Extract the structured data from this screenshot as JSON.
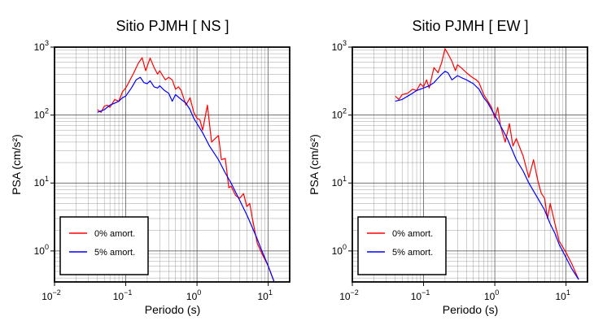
{
  "chart_data": [
    {
      "type": "line",
      "title": "Sitio PJMH [ NS ]",
      "xlabel": "Periodo (s)",
      "ylabel": "PSA (cm/s²)",
      "xscale": "log",
      "yscale": "log",
      "xlim": [
        0.01,
        20
      ],
      "ylim": [
        0.35,
        1000
      ],
      "grid": true,
      "legend_position": "bottom-left",
      "xticks": [
        {
          "value": 0.01,
          "base": "10",
          "exp": "−2"
        },
        {
          "value": 0.1,
          "base": "10",
          "exp": "−1"
        },
        {
          "value": 1,
          "base": "10",
          "exp": "0"
        },
        {
          "value": 10,
          "base": "10",
          "exp": "1"
        }
      ],
      "yticks": [
        {
          "value": 1,
          "base": "10",
          "exp": "0"
        },
        {
          "value": 10,
          "base": "10",
          "exp": "1"
        },
        {
          "value": 100,
          "base": "10",
          "exp": "2"
        },
        {
          "value": 1000,
          "base": "10",
          "exp": "3"
        }
      ],
      "series": [
        {
          "name": "0% amort.",
          "color": "#ff0000",
          "x": [
            0.04,
            0.045,
            0.05,
            0.055,
            0.06,
            0.07,
            0.08,
            0.09,
            0.1,
            0.11,
            0.12,
            0.13,
            0.15,
            0.17,
            0.19,
            0.2,
            0.22,
            0.25,
            0.28,
            0.3,
            0.33,
            0.36,
            0.4,
            0.45,
            0.5,
            0.55,
            0.6,
            0.7,
            0.8,
            0.9,
            1.0,
            1.1,
            1.2,
            1.4,
            1.6,
            1.8,
            2.0,
            2.2,
            2.5,
            2.8,
            3.0,
            3.5,
            4.0,
            4.5,
            5.0,
            5.5,
            6.0,
            7.0,
            8.0,
            10.0,
            12.0
          ],
          "y": [
            120,
            110,
            135,
            140,
            130,
            170,
            160,
            220,
            250,
            300,
            360,
            420,
            580,
            700,
            450,
            520,
            690,
            500,
            400,
            450,
            380,
            330,
            360,
            330,
            240,
            260,
            230,
            140,
            180,
            110,
            90,
            85,
            60,
            140,
            40,
            45,
            50,
            22,
            23,
            8.5,
            9,
            6.5,
            6,
            7,
            4.5,
            5,
            3,
            1.3,
            0.95,
            0.6,
            0.36
          ]
        },
        {
          "name": "5% amort.",
          "color": "#0000ff",
          "x": [
            0.04,
            0.05,
            0.06,
            0.07,
            0.08,
            0.09,
            0.1,
            0.12,
            0.14,
            0.16,
            0.18,
            0.2,
            0.22,
            0.25,
            0.28,
            0.3,
            0.35,
            0.4,
            0.45,
            0.5,
            0.6,
            0.7,
            0.8,
            0.9,
            1.0,
            1.2,
            1.5,
            2.0,
            2.5,
            3.0,
            4.0,
            5.0,
            6.0,
            7.0,
            8.0,
            10.0,
            12.0
          ],
          "y": [
            110,
            120,
            140,
            150,
            160,
            180,
            190,
            250,
            330,
            360,
            300,
            290,
            320,
            260,
            250,
            270,
            230,
            210,
            160,
            200,
            170,
            150,
            120,
            90,
            75,
            55,
            35,
            22,
            14,
            10,
            5.5,
            3.4,
            2.2,
            1.5,
            1.05,
            0.6,
            0.36
          ]
        }
      ]
    },
    {
      "type": "line",
      "title": "Sitio PJMH [ EW ]",
      "xlabel": "Periodo (s)",
      "ylabel": "PSA (cm/s²)",
      "xscale": "log",
      "yscale": "log",
      "xlim": [
        0.01,
        20
      ],
      "ylim": [
        0.35,
        1000
      ],
      "grid": true,
      "legend_position": "bottom-left",
      "xticks": [
        {
          "value": 0.01,
          "base": "10",
          "exp": "−2"
        },
        {
          "value": 0.1,
          "base": "10",
          "exp": "−1"
        },
        {
          "value": 1,
          "base": "10",
          "exp": "0"
        },
        {
          "value": 10,
          "base": "10",
          "exp": "1"
        }
      ],
      "yticks": [
        {
          "value": 1,
          "base": "10",
          "exp": "0"
        },
        {
          "value": 10,
          "base": "10",
          "exp": "1"
        },
        {
          "value": 100,
          "base": "10",
          "exp": "2"
        },
        {
          "value": 1000,
          "base": "10",
          "exp": "3"
        }
      ],
      "series": [
        {
          "name": "0% amort.",
          "color": "#ff0000",
          "x": [
            0.04,
            0.045,
            0.05,
            0.06,
            0.07,
            0.08,
            0.09,
            0.1,
            0.11,
            0.12,
            0.14,
            0.16,
            0.18,
            0.2,
            0.22,
            0.25,
            0.28,
            0.3,
            0.35,
            0.4,
            0.45,
            0.5,
            0.55,
            0.6,
            0.7,
            0.8,
            0.9,
            1.0,
            1.1,
            1.2,
            1.4,
            1.6,
            1.8,
            2.0,
            2.5,
            3.0,
            3.5,
            4.0,
            4.5,
            5.0,
            5.5,
            6.0,
            7.0,
            8.0,
            10.0,
            12.0,
            15.0
          ],
          "y": [
            190,
            170,
            200,
            210,
            240,
            230,
            290,
            260,
            330,
            250,
            500,
            420,
            600,
            950,
            800,
            620,
            450,
            550,
            480,
            420,
            380,
            350,
            330,
            300,
            200,
            160,
            130,
            90,
            130,
            70,
            40,
            75,
            35,
            45,
            25,
            12,
            22,
            11,
            7,
            6,
            3,
            5,
            2.5,
            1.4,
            0.95,
            0.65,
            0.38
          ]
        },
        {
          "name": "5% amort.",
          "color": "#0000ff",
          "x": [
            0.04,
            0.05,
            0.06,
            0.07,
            0.08,
            0.1,
            0.12,
            0.14,
            0.16,
            0.18,
            0.2,
            0.22,
            0.25,
            0.3,
            0.35,
            0.4,
            0.5,
            0.6,
            0.7,
            0.8,
            0.9,
            1.0,
            1.2,
            1.5,
            2.0,
            2.5,
            3.0,
            4.0,
            5.0,
            6.0,
            7.0,
            8.0,
            10.0,
            12.0,
            15.0
          ],
          "y": [
            160,
            170,
            190,
            210,
            230,
            250,
            270,
            300,
            350,
            400,
            440,
            420,
            330,
            380,
            350,
            330,
            290,
            240,
            180,
            150,
            120,
            100,
            70,
            45,
            22,
            15,
            10,
            6,
            4,
            2.5,
            1.8,
            1.25,
            0.8,
            0.55,
            0.38
          ]
        }
      ]
    }
  ]
}
